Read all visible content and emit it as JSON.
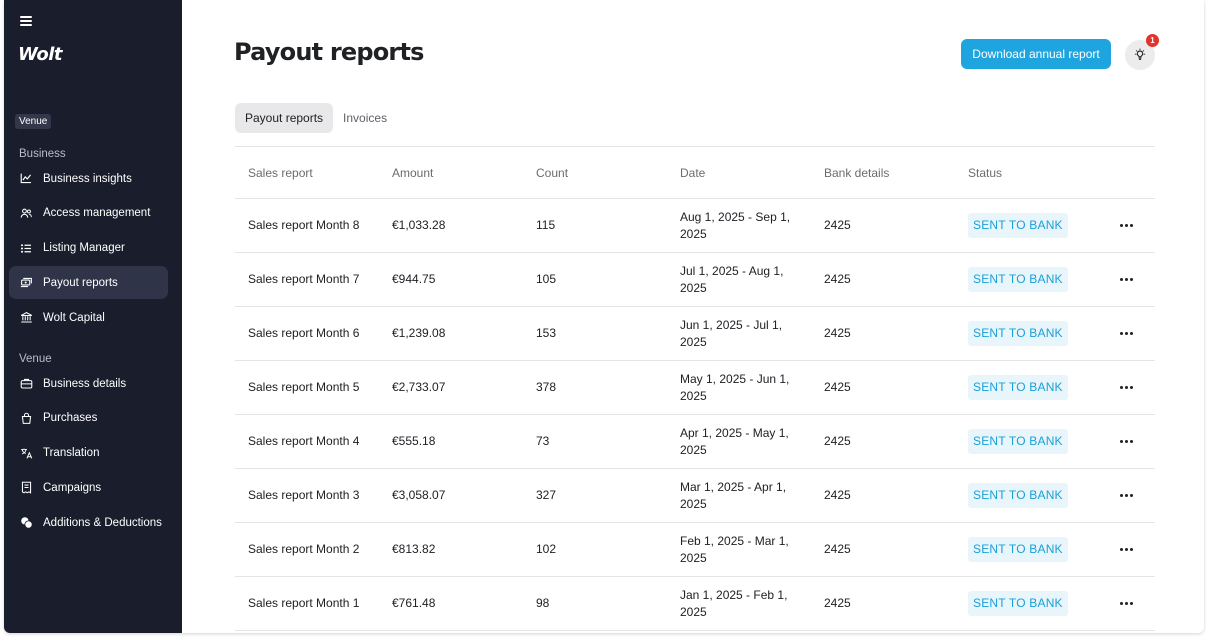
{
  "sidebar": {
    "logo": "Wolt",
    "venue_chip": "Venue",
    "section_business": "Business",
    "section_venue": "Venue",
    "business_items": [
      {
        "label": "Business insights",
        "icon": "chart-icon"
      },
      {
        "label": "Access management",
        "icon": "users-icon"
      },
      {
        "label": "Listing Manager",
        "icon": "list-icon"
      },
      {
        "label": "Payout reports",
        "icon": "payout-icon",
        "active": true
      },
      {
        "label": "Wolt Capital",
        "icon": "bank-icon"
      }
    ],
    "venue_items": [
      {
        "label": "Business details",
        "icon": "briefcase-icon"
      },
      {
        "label": "Purchases",
        "icon": "bag-icon"
      },
      {
        "label": "Translation",
        "icon": "translate-icon"
      },
      {
        "label": "Campaigns",
        "icon": "receipt-icon"
      },
      {
        "label": "Additions & Deductions",
        "icon": "coins-icon"
      }
    ]
  },
  "header": {
    "title": "Payout reports",
    "download_button": "Download annual report",
    "notification_count": "1"
  },
  "tabs": [
    {
      "label": "Payout reports",
      "active": true
    },
    {
      "label": "Invoices",
      "active": false
    }
  ],
  "table": {
    "columns": [
      "Sales report",
      "Amount",
      "Count",
      "Date",
      "Bank details",
      "Status"
    ],
    "rows": [
      {
        "report": "Sales report Month 8",
        "amount": "€1,033.28",
        "count": "115",
        "date1": "Aug 1, 2025 - Sep 1,",
        "date2": "2025",
        "bank": "2425",
        "status": "SENT TO BANK"
      },
      {
        "report": "Sales report Month 7",
        "amount": "€944.75",
        "count": "105",
        "date1": "Jul 1, 2025 - Aug 1,",
        "date2": "2025",
        "bank": "2425",
        "status": "SENT TO BANK"
      },
      {
        "report": "Sales report Month 6",
        "amount": "€1,239.08",
        "count": "153",
        "date1": "Jun 1, 2025 - Jul 1,",
        "date2": "2025",
        "bank": "2425",
        "status": "SENT TO BANK"
      },
      {
        "report": "Sales report Month 5",
        "amount": "€2,733.07",
        "count": "378",
        "date1": "May 1, 2025 - Jun 1,",
        "date2": "2025",
        "bank": "2425",
        "status": "SENT TO BANK"
      },
      {
        "report": "Sales report Month 4",
        "amount": "€555.18",
        "count": "73",
        "date1": "Apr 1, 2025 - May 1,",
        "date2": "2025",
        "bank": "2425",
        "status": "SENT TO BANK"
      },
      {
        "report": "Sales report Month 3",
        "amount": "€3,058.07",
        "count": "327",
        "date1": "Mar 1, 2025 - Apr 1,",
        "date2": "2025",
        "bank": "2425",
        "status": "SENT TO BANK"
      },
      {
        "report": "Sales report Month 2",
        "amount": "€813.82",
        "count": "102",
        "date1": "Feb 1, 2025 - Mar 1,",
        "date2": "2025",
        "bank": "2425",
        "status": "SENT TO BANK"
      },
      {
        "report": "Sales report Month 1",
        "amount": "€761.48",
        "count": "98",
        "date1": "Jan 1, 2025 - Feb 1,",
        "date2": "2025",
        "bank": "2425",
        "status": "SENT TO BANK"
      }
    ]
  },
  "colors": {
    "sidebar_bg": "#1a1d2b",
    "accent": "#1ea5df",
    "status_text": "#1aa0d8",
    "badge": "#e0342c"
  }
}
